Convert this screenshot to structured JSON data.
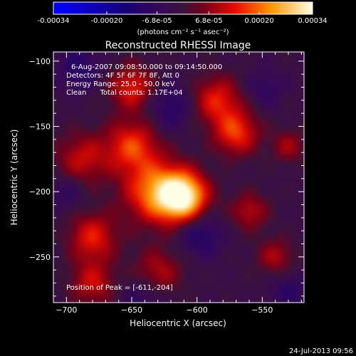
{
  "chart_data": {
    "type": "heatmap",
    "title": "Reconstructed RHESSI Image",
    "xlabel": "Heliocentric X (arcsec)",
    "ylabel": "Heliocentric Y (arcsec)",
    "xlim": [
      -710,
      -518
    ],
    "ylim": [
      -285,
      -93
    ],
    "x_ticks": [
      -700,
      -650,
      -600,
      -550
    ],
    "y_ticks": [
      -100,
      -150,
      -200,
      -250
    ],
    "colorbar": {
      "tick_labels": [
        "-0.00034",
        "-0.00020",
        "-6.8e-05",
        "6.8e-05",
        "0.00020",
        "0.00034"
      ],
      "tick_values": [
        -0.00034,
        -0.0002,
        -6.8e-05,
        6.8e-05,
        0.0002,
        0.00034
      ],
      "range": [
        -0.00034,
        0.00034
      ],
      "unit_label": "(photons cm⁻² s⁻¹ asec⁻²)"
    },
    "info_lines": [
      "6-Aug-2007 09:08:50.000 to 09:14:50.000",
      "Detectors: 4F 5F 6F 7F 8F, Att 0",
      "Energy Range: 25.0 - 50.0 keV",
      "Clean      Total counts: 1.17E+04"
    ],
    "peak_label": "Position of Peak = [-611,-204]",
    "peak": [
      -611,
      -204
    ],
    "blobs": [
      {
        "x": -611,
        "y": -204,
        "amp": 0.00034,
        "sigma": 13
      },
      {
        "x": -632,
        "y": -200,
        "amp": 0.00022,
        "sigma": 17
      },
      {
        "x": -650,
        "y": -165,
        "amp": 0.00018,
        "sigma": 14
      },
      {
        "x": -650,
        "y": -120,
        "amp": 0.00016,
        "sigma": 12
      },
      {
        "x": -688,
        "y": -175,
        "amp": 0.00013,
        "sigma": 14
      },
      {
        "x": -680,
        "y": -235,
        "amp": 0.00016,
        "sigma": 13
      },
      {
        "x": -680,
        "y": -270,
        "amp": 0.00013,
        "sigma": 12
      },
      {
        "x": -630,
        "y": -262,
        "amp": 0.00012,
        "sigma": 13
      },
      {
        "x": -585,
        "y": -130,
        "amp": 0.00016,
        "sigma": 13
      },
      {
        "x": -570,
        "y": -155,
        "amp": 0.00018,
        "sigma": 12
      },
      {
        "x": -560,
        "y": -215,
        "amp": 0.00012,
        "sigma": 10
      },
      {
        "x": -540,
        "y": -250,
        "amp": 0.00011,
        "sigma": 10
      },
      {
        "x": -530,
        "y": -165,
        "amp": 0.0001,
        "sigma": 9
      },
      {
        "x": -620,
        "y": -135,
        "amp": -9e-05,
        "sigma": 12
      },
      {
        "x": -598,
        "y": -232,
        "amp": -0.0001,
        "sigma": 12
      },
      {
        "x": -690,
        "y": -105,
        "amp": -8e-05,
        "sigma": 12
      },
      {
        "x": -640,
        "y": -280,
        "amp": -7e-05,
        "sigma": 12
      },
      {
        "x": -548,
        "y": -120,
        "amp": -6e-05,
        "sigma": 10
      },
      {
        "x": -530,
        "y": -275,
        "amp": -7e-05,
        "sigma": 10
      },
      {
        "x": -700,
        "y": -200,
        "amp": -6e-05,
        "sigma": 10
      }
    ]
  },
  "footer": {
    "timestamp": "24-Jul-2013 09:56"
  },
  "colors": {
    "background": "#000000",
    "text": "#ffffff"
  }
}
